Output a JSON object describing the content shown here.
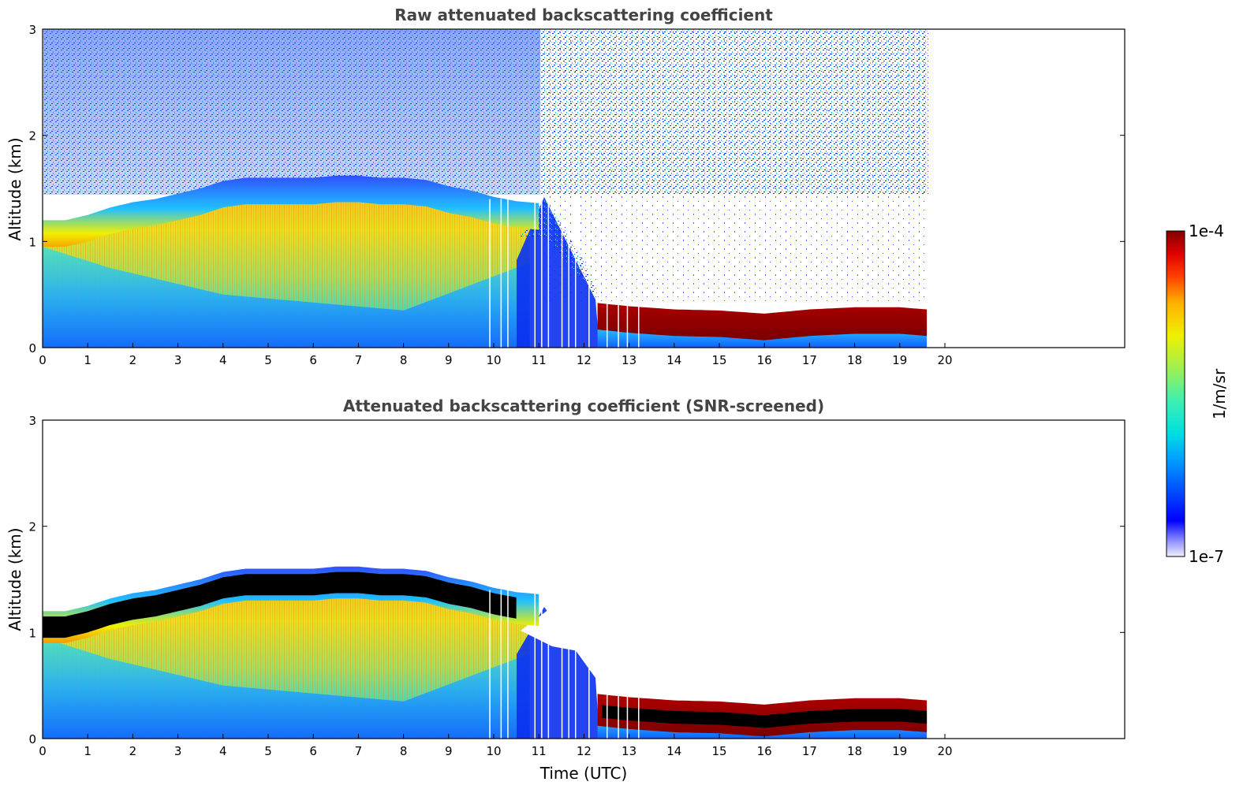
{
  "chart_data": [
    {
      "type": "heatmap",
      "title": "Raw attenuated backscattering coefficient",
      "xlabel": "",
      "ylabel": "Altitude (km)",
      "xlim": [
        0,
        24
      ],
      "ylim": [
        0,
        3
      ],
      "xticks": [
        "0",
        "1",
        "2",
        "3",
        "4",
        "5",
        "6",
        "7",
        "8",
        "9",
        "10",
        "11",
        "12",
        "13",
        "14",
        "15",
        "16",
        "17",
        "18",
        "19",
        "20"
      ],
      "yticks": [
        "0",
        "1",
        "2",
        "3"
      ],
      "data_end_hour": 19.6,
      "layer_top_km": {
        "x": [
          0,
          0.5,
          1,
          1.5,
          2,
          2.5,
          3,
          3.5,
          4,
          4.5,
          5,
          5.5,
          6,
          6.5,
          7,
          7.5,
          8,
          8.5,
          9,
          9.5,
          10,
          10.5,
          11,
          12.3,
          13,
          14,
          15,
          16,
          17,
          18,
          19,
          19.6
        ],
        "y": [
          1.2,
          1.2,
          1.25,
          1.32,
          1.37,
          1.4,
          1.45,
          1.5,
          1.57,
          1.6,
          1.6,
          1.6,
          1.6,
          1.62,
          1.62,
          1.6,
          1.6,
          1.58,
          1.52,
          1.48,
          1.42,
          1.38,
          1.36,
          0.42,
          0.39,
          0.36,
          0.35,
          0.32,
          0.36,
          0.38,
          0.38,
          0.36
        ]
      }
    },
    {
      "type": "heatmap",
      "title": "Attenuated backscattering coefficient (SNR-screened)",
      "xlabel": "Time (UTC)",
      "ylabel": "Altitude (km)",
      "xlim": [
        0,
        24
      ],
      "ylim": [
        0,
        3
      ],
      "xticks": [
        "0",
        "1",
        "2",
        "3",
        "4",
        "5",
        "6",
        "7",
        "8",
        "9",
        "10",
        "11",
        "12",
        "13",
        "14",
        "15",
        "16",
        "17",
        "18",
        "19",
        "20"
      ],
      "yticks": [
        "0",
        "1",
        "2",
        "3"
      ],
      "data_end_hour": 19.6
    }
  ],
  "colorbar": {
    "label": "1/m/sr",
    "max_label": "1e-4",
    "min_label": "1e-7",
    "range": [
      1e-07,
      0.0001
    ],
    "scale": "log"
  },
  "colors": {
    "saturated_layer": "#000000",
    "title_color": "#444444"
  }
}
